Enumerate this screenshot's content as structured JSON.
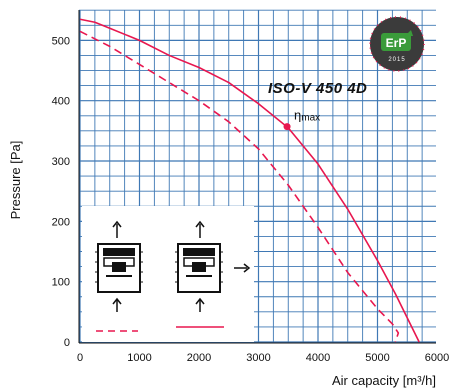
{
  "chart_data": {
    "type": "line",
    "xlabel": "Air capacity [m³/h]",
    "ylabel": "Pressure [Pa]",
    "xlim": [
      0,
      6000
    ],
    "ylim": [
      0,
      550
    ],
    "x_ticks": [
      "0",
      "1000",
      "2000",
      "3000",
      "4000",
      "5000",
      "6000"
    ],
    "y_ticks": [
      "0",
      "100",
      "200",
      "300",
      "400",
      "500"
    ],
    "annotation_model": "ISO-V 450 4D",
    "annotation_eta": "η",
    "annotation_eta_sub": "max",
    "badge": {
      "text": "ErP",
      "year": "2015"
    },
    "grid": true,
    "series": [
      {
        "style": "solid",
        "color": "#e8174f",
        "x": [
          0,
          250,
          500,
          1000,
          1500,
          2000,
          2500,
          3000,
          3500,
          4000,
          4500,
          5000,
          5300,
          5500,
          5700
        ],
        "y": [
          535,
          530,
          520,
          500,
          475,
          455,
          430,
          395,
          355,
          295,
          220,
          135,
          80,
          40,
          0
        ]
      },
      {
        "style": "dashed",
        "color": "#e8174f",
        "x": [
          0,
          500,
          1000,
          1500,
          2000,
          2500,
          3000,
          3500,
          4000,
          4500,
          5000,
          5250,
          5350,
          5300
        ],
        "y": [
          515,
          490,
          460,
          430,
          400,
          365,
          320,
          260,
          190,
          115,
          55,
          30,
          15,
          0
        ]
      }
    ],
    "eta_max_point": {
      "x": 3480,
      "y": 357
    }
  }
}
